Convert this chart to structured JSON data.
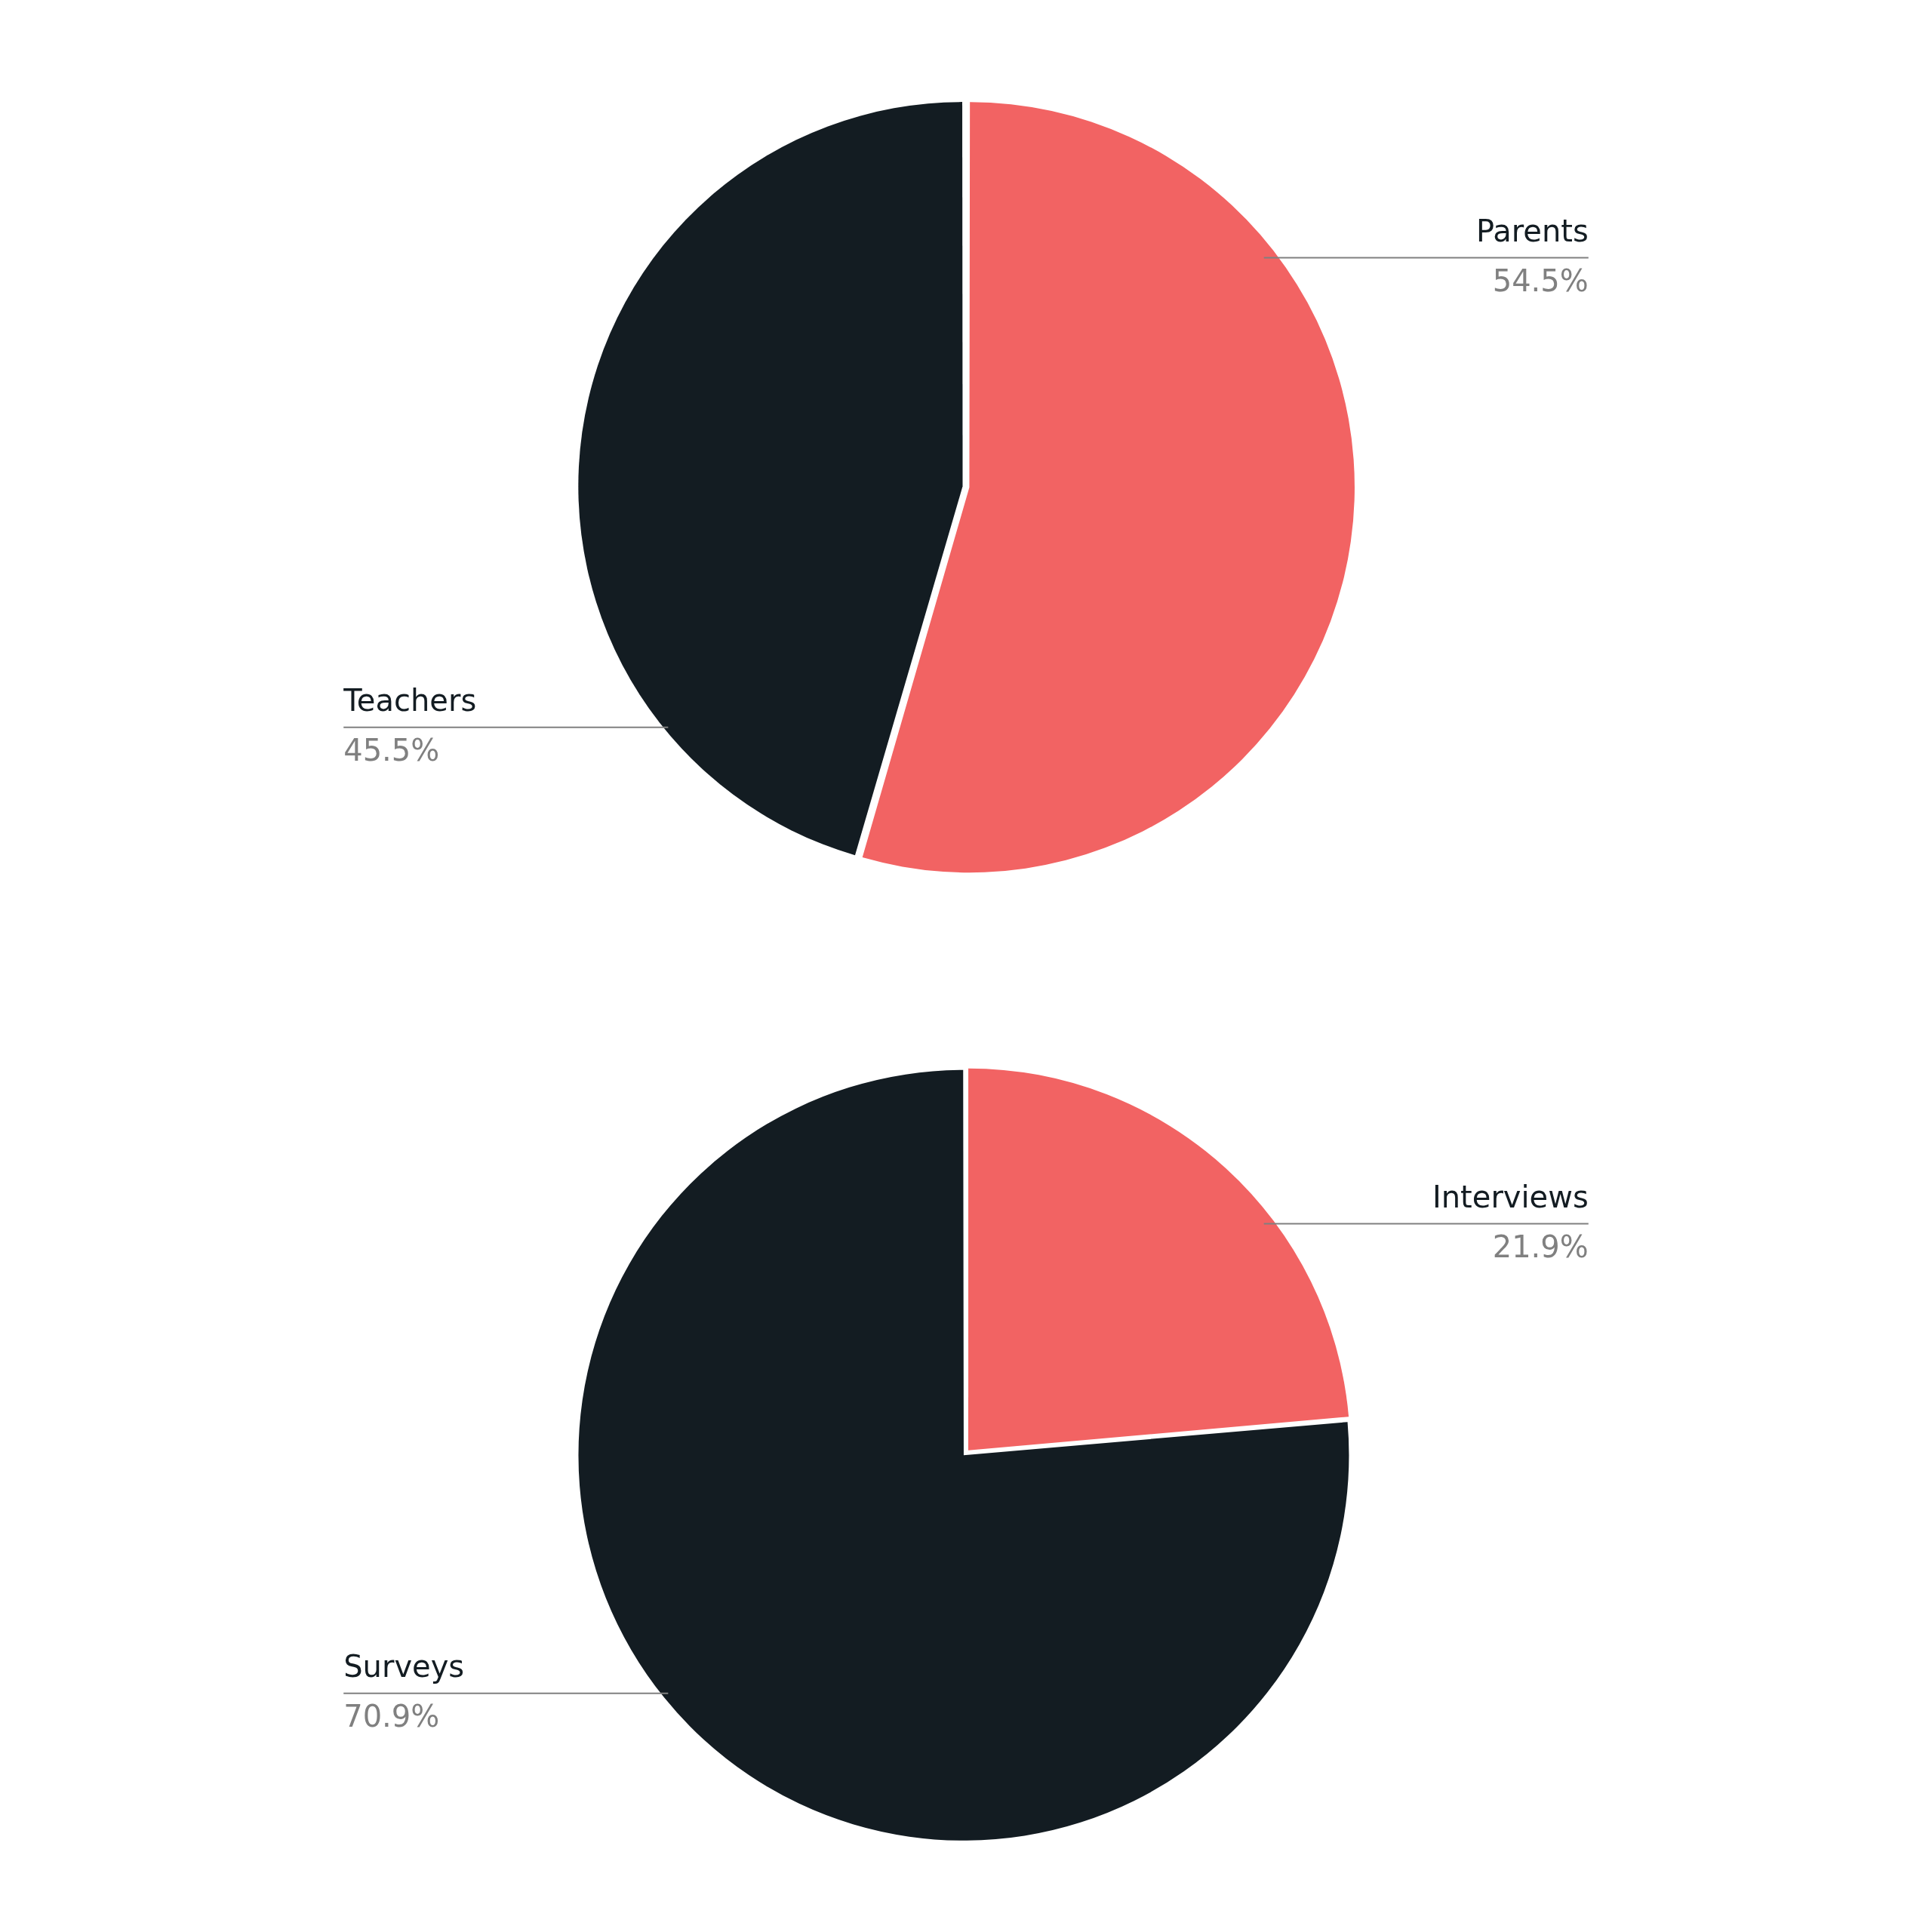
{
  "chart_data": [
    {
      "type": "pie",
      "categories": [
        "Parents",
        "Teachers"
      ],
      "values": [
        54.5,
        45.5
      ],
      "colors": [
        "#f26363",
        "#131c22"
      ],
      "value_labels": [
        "54.5%",
        "45.5%"
      ],
      "legend": false
    },
    {
      "type": "pie",
      "categories": [
        "Interviews",
        "Surveys"
      ],
      "values": [
        21.9,
        70.9
      ],
      "colors": [
        "#f26363",
        "#131c22"
      ],
      "value_labels": [
        "21.9%",
        "70.9%"
      ],
      "legend": false
    }
  ]
}
